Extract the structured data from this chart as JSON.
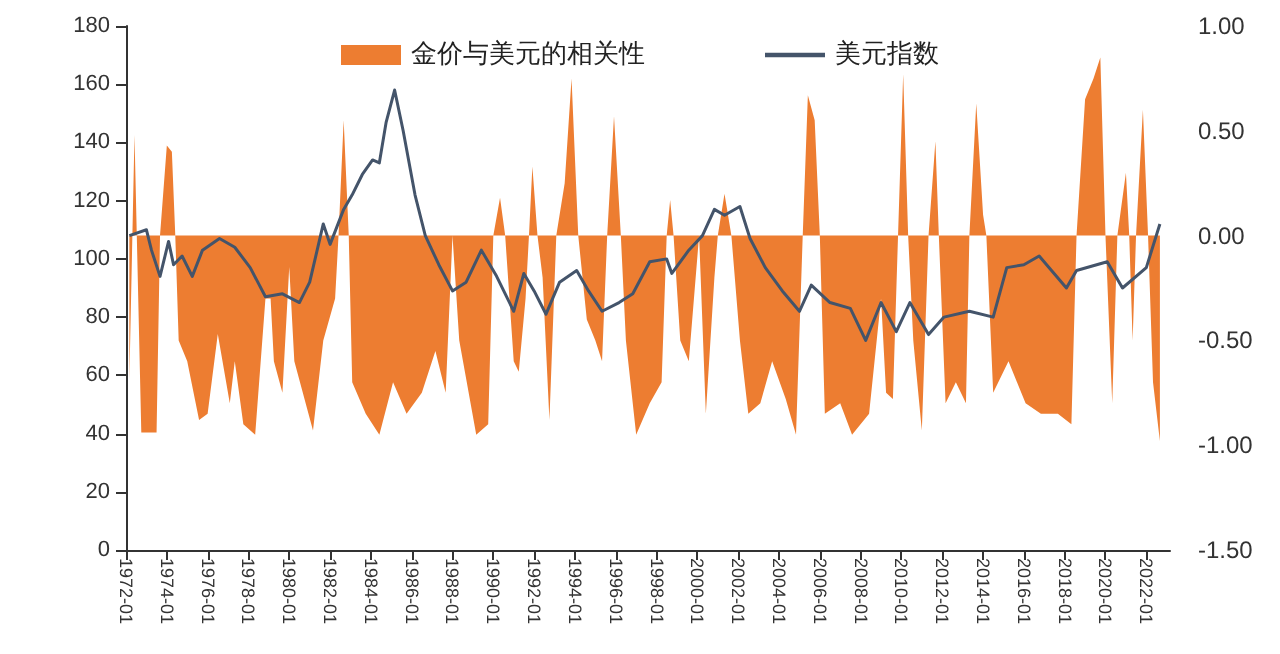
{
  "chart_data": {
    "type": "line",
    "xlim": [
      "1972-01",
      "2023-03"
    ],
    "xticks": [
      "1972-01",
      "1974-01",
      "1976-01",
      "1978-01",
      "1980-01",
      "1982-01",
      "1984-01",
      "1986-01",
      "1988-01",
      "1990-01",
      "1992-01",
      "1994-01",
      "1996-01",
      "1998-01",
      "2000-01",
      "2002-01",
      "2004-01",
      "2006-01",
      "2008-01",
      "2010-01",
      "2012-01",
      "2014-01",
      "2016-01",
      "2018-01",
      "2020-01",
      "2022-01"
    ],
    "ylim": [
      0,
      180
    ],
    "yticks": [
      0,
      20,
      40,
      60,
      80,
      100,
      120,
      140,
      160,
      180
    ],
    "y2lim": [
      -1.5,
      1.0
    ],
    "y2ticks": [
      {
        "value": -1.5,
        "label": "-1.50"
      },
      {
        "value": -1.0,
        "label": "-1.00"
      },
      {
        "value": -0.5,
        "label": "-0.50"
      },
      {
        "value": 0,
        "label": "0.00"
      },
      {
        "value": 0.5,
        "label": "0.50"
      },
      {
        "value": 1.0,
        "label": "1.00"
      }
    ],
    "grid": false,
    "legend": "top",
    "marker": "none",
    "series": [
      {
        "name": "金价与美元的相关性",
        "type": "area",
        "axis": "y2",
        "color": "#ed7d31",
        "x": [
          "1972-03",
          "1972-06",
          "1972-10",
          "1973-07",
          "1973-09",
          "1974-01",
          "1974-04",
          "1974-06",
          "1974-08",
          "1975-01",
          "1975-08",
          "1976-01",
          "1976-07",
          "1977-02",
          "1977-05",
          "1977-10",
          "1978-05",
          "1978-11",
          "1979-02",
          "1979-04",
          "1979-09",
          "1980-01",
          "1980-04",
          "1981-03",
          "1981-09",
          "1982-04",
          "1982-06",
          "1982-09",
          "1982-12",
          "1983-02",
          "1983-10",
          "1984-06",
          "1985-02",
          "1985-10",
          "1986-07",
          "1987-03",
          "1987-09",
          "1988-01",
          "1988-05",
          "1989-03",
          "1989-10",
          "1990-01",
          "1990-05",
          "1990-08",
          "1991-01",
          "1991-04",
          "1991-08",
          "1991-10",
          "1991-12",
          "1992-03",
          "1992-06",
          "1992-10",
          "1993-02",
          "1993-07",
          "1993-11",
          "1994-03",
          "1994-08",
          "1995-01",
          "1995-05",
          "1995-08",
          "1995-12",
          "1996-04",
          "1996-07",
          "1997-01",
          "1997-09",
          "1998-04",
          "1998-07",
          "1998-09",
          "1998-11",
          "1999-03",
          "1999-08",
          "2000-02",
          "2000-06",
          "2000-11",
          "2001-01",
          "2001-05",
          "2001-09",
          "2002-02",
          "2002-07",
          "2003-02",
          "2003-09",
          "2004-05",
          "2004-11",
          "2005-03",
          "2005-06",
          "2005-10",
          "2006-01",
          "2006-04",
          "2007-01",
          "2007-08",
          "2008-06",
          "2009-01",
          "2009-04",
          "2009-08",
          "2009-11",
          "2010-02",
          "2010-05",
          "2010-08",
          "2011-01",
          "2011-05",
          "2011-09",
          "2011-11",
          "2012-03",
          "2012-09",
          "2013-03",
          "2013-05",
          "2013-09",
          "2014-01",
          "2014-03",
          "2014-07",
          "2015-04",
          "2016-02",
          "2016-11",
          "2017-09",
          "2018-05",
          "2018-08",
          "2019-01",
          "2019-06",
          "2019-10",
          "2020-01",
          "2020-05",
          "2020-08",
          "2021-01",
          "2021-03",
          "2021-05",
          "2021-07",
          "2021-11",
          "2022-02",
          "2022-05",
          "2022-09"
        ],
        "values": [
          -0.69,
          0.48,
          -0.94,
          -0.94,
          0,
          0.43,
          0.4,
          0,
          -0.5,
          -0.6,
          -0.88,
          -0.85,
          -0.47,
          -0.8,
          -0.6,
          -0.9,
          -0.95,
          -0.3,
          -0.3,
          -0.6,
          -0.75,
          -0.15,
          -0.6,
          -0.93,
          -0.5,
          -0.3,
          0,
          0.55,
          0,
          -0.7,
          -0.85,
          -0.95,
          -0.7,
          -0.85,
          -0.75,
          -0.55,
          -0.75,
          0,
          -0.5,
          -0.95,
          -0.9,
          0,
          0.18,
          0,
          -0.6,
          -0.65,
          -0.3,
          0,
          0.33,
          0,
          -0.2,
          -0.88,
          0,
          0.25,
          0.75,
          0,
          -0.4,
          -0.5,
          -0.6,
          0,
          0.57,
          0,
          -0.5,
          -0.95,
          -0.8,
          -0.7,
          0,
          0.17,
          0,
          -0.5,
          -0.6,
          0,
          -0.85,
          -0.2,
          0,
          0.2,
          0,
          -0.5,
          -0.85,
          -0.8,
          -0.6,
          -0.78,
          -0.95,
          0,
          0.67,
          0.55,
          0,
          -0.85,
          -0.8,
          -0.95,
          -0.85,
          -0.3,
          -0.75,
          -0.78,
          0,
          0.77,
          0,
          -0.5,
          -0.93,
          0,
          0.45,
          0,
          -0.8,
          -0.7,
          -0.8,
          0,
          0.63,
          0.1,
          0,
          -0.75,
          -0.6,
          -0.8,
          -0.85,
          -0.85,
          -0.9,
          0,
          0.65,
          0.75,
          0.85,
          0,
          -0.8,
          0,
          0.3,
          0,
          -0.5,
          0,
          0.6,
          0,
          -0.7,
          -0.98
        ]
      },
      {
        "name": "美元指数",
        "color": "#44546a",
        "x": [
          "1972-03",
          "1973-01",
          "1973-04",
          "1973-09",
          "1974-02",
          "1974-05",
          "1974-10",
          "1975-04",
          "1975-10",
          "1976-08",
          "1977-05",
          "1978-02",
          "1978-11",
          "1979-09",
          "1980-07",
          "1981-01",
          "1981-09",
          "1982-01",
          "1982-09",
          "1983-02",
          "1983-08",
          "1984-02",
          "1984-06",
          "1984-10",
          "1985-03",
          "1985-08",
          "1986-03",
          "1986-09",
          "1987-05",
          "1988-01",
          "1988-09",
          "1989-06",
          "1990-03",
          "1991-01",
          "1991-07",
          "1992-01",
          "1992-08",
          "1993-04",
          "1994-02",
          "1994-09",
          "1995-05",
          "1996-03",
          "1996-11",
          "1997-09",
          "1998-07",
          "1998-10",
          "1999-08",
          "2000-04",
          "2000-11",
          "2001-05",
          "2002-02",
          "2002-08",
          "2003-05",
          "2004-03",
          "2005-01",
          "2005-08",
          "2006-07",
          "2007-07",
          "2008-04",
          "2009-01",
          "2009-10",
          "2010-06",
          "2011-05",
          "2012-02",
          "2013-05",
          "2014-07",
          "2015-03",
          "2016-01",
          "2016-10",
          "2018-02",
          "2018-08",
          "2020-02",
          "2020-11",
          "2022-01",
          "2022-09"
        ],
        "values": [
          108,
          110,
          103,
          94,
          106,
          98,
          101,
          94,
          103,
          107,
          104,
          97,
          87,
          88,
          85,
          92,
          112,
          105,
          117,
          122,
          129,
          134,
          133,
          147,
          158,
          144,
          122,
          108,
          98,
          89,
          92,
          103,
          94,
          82,
          95,
          89,
          81,
          92,
          96,
          89,
          82,
          85,
          88,
          99,
          100,
          95,
          103,
          108,
          117,
          115,
          118,
          107,
          97,
          89,
          82,
          91,
          85,
          83,
          72,
          85,
          75,
          85,
          74,
          80,
          82,
          80,
          97,
          98,
          101,
          90,
          96,
          99,
          90,
          97,
          112
        ]
      }
    ]
  }
}
